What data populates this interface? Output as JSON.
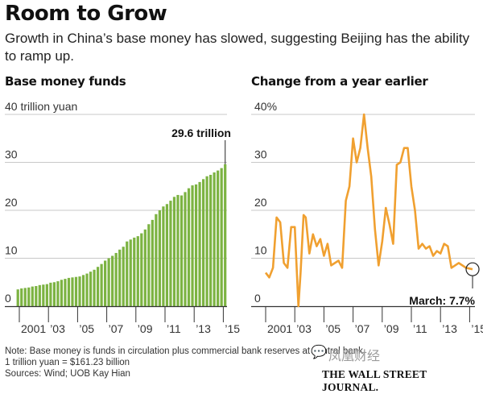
{
  "title": "Room to Grow",
  "subtitle": "Growth in China’s base money has slowed, suggesting Beijing has the ability to ramp up.",
  "chart_data": [
    {
      "type": "bar",
      "title": "Base money funds",
      "unit_label": "40 trillion yuan",
      "ylim": [
        0,
        40
      ],
      "y_ticks": [
        "0",
        "10",
        "20",
        "30"
      ],
      "x_tick_labels": [
        "2001",
        "’03",
        "’05",
        "’07",
        "’09",
        "’11",
        "’13",
        "’15"
      ],
      "bar_color": "#7cb342",
      "annotation": "29.6 trillion",
      "values": [
        3.5,
        3.7,
        3.8,
        3.9,
        4.1,
        4.2,
        4.4,
        4.5,
        4.6,
        4.9,
        5.0,
        5.2,
        5.5,
        5.7,
        5.9,
        6.0,
        6.1,
        6.2,
        6.5,
        6.8,
        7.2,
        7.6,
        8.2,
        8.8,
        9.5,
        10.0,
        10.5,
        11.1,
        11.8,
        12.4,
        13.5,
        13.9,
        14.3,
        14.6,
        15.2,
        16.0,
        17.1,
        18.0,
        19.2,
        20.0,
        20.8,
        21.3,
        22.0,
        22.8,
        23.2,
        23.1,
        23.8,
        24.6,
        25.2,
        25.4,
        25.9,
        26.5,
        27.1,
        27.4,
        27.9,
        28.3,
        28.8,
        29.6
      ]
    },
    {
      "type": "line",
      "title": "Change from a year earlier",
      "ylim": [
        0,
        40
      ],
      "y_ticks": [
        "0",
        "10",
        "20",
        "30",
        "40%"
      ],
      "x_tick_labels": [
        "2001",
        "’03",
        "’05",
        "’07",
        "’09",
        "’11",
        "’13",
        "’15"
      ],
      "line_color": "#f0a030",
      "annotation": "March: 7.7%",
      "x": [
        2001.0,
        2001.25,
        2001.5,
        2001.75,
        2002.0,
        2002.25,
        2002.5,
        2002.75,
        2003.0,
        2003.25,
        2003.4,
        2003.6,
        2003.75,
        2004.0,
        2004.25,
        2004.5,
        2004.75,
        2005.0,
        2005.25,
        2005.5,
        2005.75,
        2006.0,
        2006.25,
        2006.5,
        2006.75,
        2007.0,
        2007.25,
        2007.5,
        2007.75,
        2008.0,
        2008.25,
        2008.5,
        2008.75,
        2009.0,
        2009.25,
        2009.5,
        2009.75,
        2010.0,
        2010.25,
        2010.5,
        2010.75,
        2011.0,
        2011.25,
        2011.5,
        2011.75,
        2012.0,
        2012.25,
        2012.5,
        2012.75,
        2013.0,
        2013.25,
        2013.5,
        2013.75,
        2014.0,
        2014.25,
        2014.5,
        2014.75,
        2015.2
      ],
      "values": [
        7.0,
        6.0,
        8.0,
        18.5,
        17.5,
        9.0,
        8.0,
        16.5,
        16.5,
        0.0,
        7.0,
        19.0,
        18.5,
        11.0,
        15.0,
        12.5,
        14.0,
        10.5,
        13.0,
        8.5,
        9.0,
        9.5,
        8.0,
        22.0,
        25.0,
        35.0,
        30.0,
        33.0,
        40.0,
        33.0,
        27.0,
        16.0,
        8.5,
        13.5,
        20.5,
        17.0,
        13.0,
        29.5,
        30.0,
        33.0,
        33.0,
        25.0,
        20.0,
        12.0,
        13.0,
        12.0,
        12.5,
        10.5,
        11.5,
        11.0,
        13.0,
        12.5,
        8.0,
        8.5,
        9.0,
        8.5,
        8.0,
        7.7
      ]
    }
  ],
  "notes": {
    "note": "Note: Base money is funds in circulation plus commercial bank reserves at central bank.",
    "conversion": "1 trillion yuan = $161.23 billion",
    "sources": "Sources: Wind; UOB Kay Hian"
  },
  "watermark": "凤凰财经",
  "watermark_icon": "wechat-logo-icon",
  "publisher": "THE WALL STREET JOURNAL."
}
